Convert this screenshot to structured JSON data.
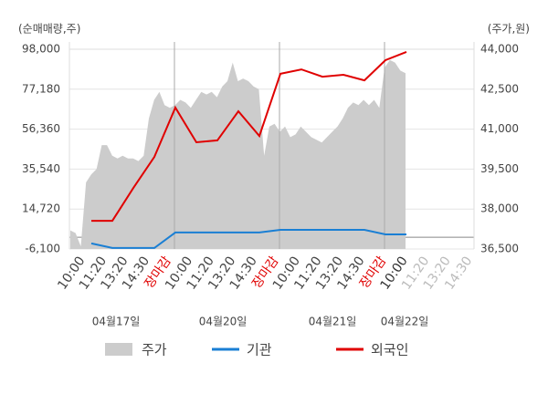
{
  "chart_data": {
    "type": "line",
    "y_axis_label": "(순매매량,주)",
    "y2_axis_label": "(주가,원)",
    "ylim": [
      -6100,
      98000
    ],
    "yticks": [
      {
        "value": -6100,
        "label": "-6,100"
      },
      {
        "value": 14720,
        "label": "14,720"
      },
      {
        "value": 35540,
        "label": "35,540"
      },
      {
        "value": 56360,
        "label": "56,360"
      },
      {
        "value": 77180,
        "label": "77,180"
      },
      {
        "value": 98000,
        "label": "98,000"
      }
    ],
    "y2lim": [
      36500,
      44000
    ],
    "y2ticks": [
      {
        "value": 36500,
        "label": "36,500"
      },
      {
        "value": 38000,
        "label": "38,000"
      },
      {
        "value": 39500,
        "label": "39,500"
      },
      {
        "value": 41000,
        "label": "41,000"
      },
      {
        "value": 42500,
        "label": "42,500"
      },
      {
        "value": 44000,
        "label": "44,000"
      }
    ],
    "grid": true,
    "xtick_labels": [
      "10:00",
      "11:20",
      "13:20",
      "14:30",
      "장마감",
      "10:00",
      "11:20",
      "13:20",
      "14:30",
      "장마감",
      "10:00",
      "11:20",
      "13:20",
      "14:30",
      "장마감",
      "10:00",
      "11:20",
      "13:20",
      "14:30"
    ],
    "xtick_colors": [
      "#444",
      "#444",
      "#444",
      "#444",
      "#e00000",
      "#444",
      "#444",
      "#444",
      "#444",
      "#e00000",
      "#444",
      "#444",
      "#444",
      "#444",
      "#e00000",
      "#333",
      "#bbb",
      "#bbb",
      "#bbb"
    ],
    "day_labels": [
      "04월17일",
      "04월20일",
      "04월21일",
      "04월22일"
    ],
    "price": {
      "name": "주가",
      "color": "#cccccc",
      "axis": "y2",
      "values": [
        37200,
        37100,
        36600,
        39000,
        39300,
        39500,
        40400,
        40400,
        40000,
        39900,
        40000,
        39900,
        39900,
        39800,
        40000,
        41400,
        42100,
        42400,
        41900,
        41800,
        41900,
        42100,
        42000,
        41800,
        42100,
        42400,
        42300,
        42400,
        42200,
        42600,
        42800,
        43500,
        42800,
        42900,
        42800,
        42600,
        42500,
        40000,
        41100,
        41200,
        40900,
        41100,
        40700,
        40800,
        41100,
        40900,
        40700,
        40600,
        40500,
        40700,
        40900,
        41100,
        41400,
        41800,
        42000,
        41900,
        42100,
        41900,
        42100,
        41800,
        43300,
        43600,
        43500,
        43200,
        43100
      ]
    },
    "series": [
      {
        "name": "기관",
        "color": "#1a7fd4",
        "values": [
          -3200,
          -5600,
          -5600,
          -5600,
          2500,
          2500,
          2500,
          2500,
          2500,
          3900,
          3900,
          3900,
          3900,
          3900,
          1500,
          1500
        ]
      },
      {
        "name": "외국인",
        "color": "#e00000",
        "values": [
          8600,
          8600,
          25700,
          41900,
          67600,
          49500,
          50500,
          65700,
          52800,
          85200,
          87500,
          83700,
          84700,
          81800,
          92300,
          96600
        ]
      }
    ]
  }
}
